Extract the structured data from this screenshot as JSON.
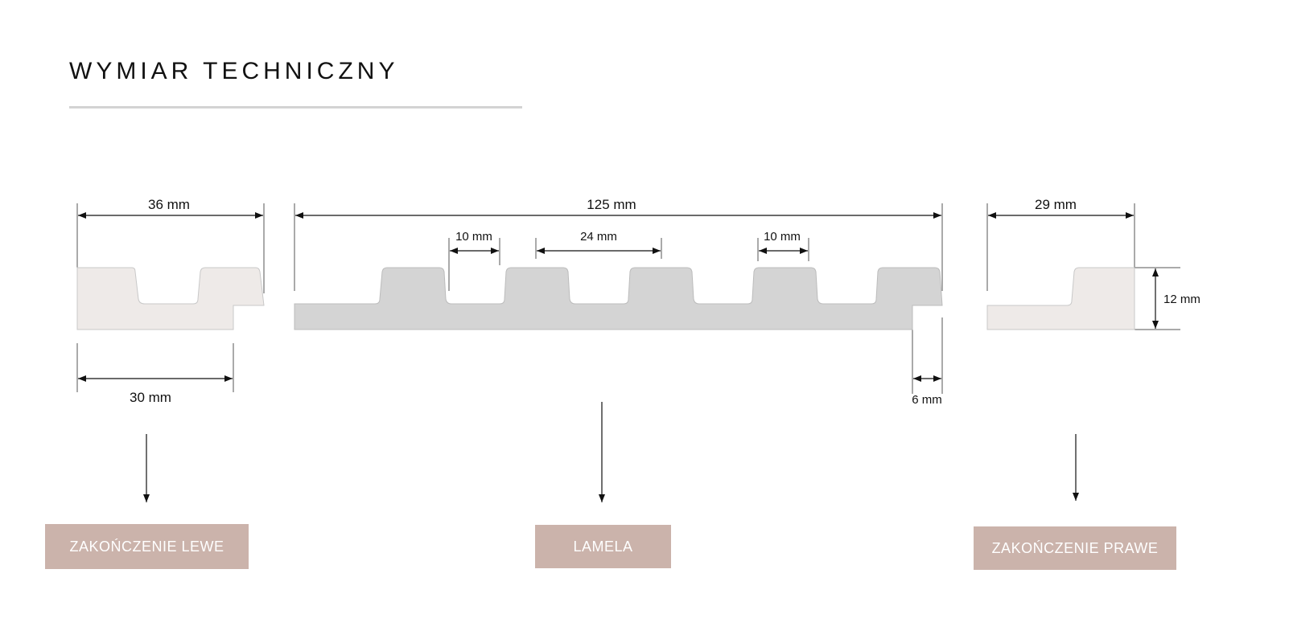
{
  "title": "WYMIAR TECHNICZNY",
  "colors": {
    "end_piece_fill": "#eeeae8",
    "lamela_fill": "#d4d4d4",
    "button_bg": "#cbb3ab",
    "button_text": "#ffffff"
  },
  "dimensions": {
    "left_width": "36 mm",
    "left_base": "30 mm",
    "lamela_width": "125 mm",
    "lamela_gap_1": "10 mm",
    "lamela_rib": "24 mm",
    "lamela_gap_2": "10 mm",
    "lamela_tongue": "6 mm",
    "right_width": "29 mm",
    "right_height": "12 mm"
  },
  "buttons": {
    "left": "ZAKOŃCZENIE LEWE",
    "center": "LAMELA",
    "right": "ZAKOŃCZENIE PRAWE"
  }
}
